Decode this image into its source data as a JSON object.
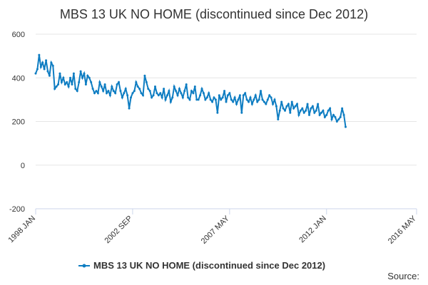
{
  "chart_data": {
    "type": "line",
    "title": "MBS 13 UK NO HOME (discontinued since Dec 2012)",
    "categories": [
      "1998 JAN",
      null,
      null,
      null,
      null,
      null,
      null,
      null,
      null,
      null,
      null,
      null,
      null,
      null,
      null,
      null,
      null,
      null,
      null,
      null,
      null,
      null,
      null,
      null,
      null,
      null,
      null,
      null,
      null,
      null,
      null,
      null,
      null,
      null,
      null,
      null,
      null,
      null,
      null,
      null,
      null,
      null,
      null,
      null,
      null,
      null,
      null,
      null,
      null,
      null,
      null,
      null,
      null,
      null,
      null,
      null,
      "2002 SEP",
      null,
      null,
      null,
      null,
      null,
      null,
      null,
      null,
      null,
      null,
      null,
      null,
      null,
      null,
      null,
      null,
      null,
      null,
      null,
      null,
      null,
      null,
      null,
      null,
      null,
      null,
      null,
      null,
      null,
      null,
      null,
      null,
      null,
      null,
      null,
      null,
      null,
      null,
      null,
      null,
      null,
      null,
      null,
      null,
      null,
      null,
      null,
      null,
      null,
      null,
      null,
      null,
      null,
      null,
      null,
      "2007 MAY",
      null,
      null,
      null,
      null,
      null,
      null,
      null,
      null,
      null,
      null,
      null,
      null,
      null,
      null,
      null,
      null,
      null,
      null,
      null,
      null,
      null,
      null,
      null,
      null,
      null,
      null,
      null,
      null,
      null,
      null,
      null,
      null,
      null,
      null,
      null,
      null,
      null,
      null,
      null,
      null,
      null,
      null,
      null,
      null,
      null,
      null,
      null,
      null,
      null,
      null,
      null,
      null,
      null,
      null,
      null,
      "2012 JAN",
      null,
      null,
      null,
      null,
      null,
      null,
      null,
      null,
      null,
      null,
      null,
      null,
      null,
      null,
      null,
      null,
      null,
      null,
      null,
      null,
      null,
      null,
      null,
      null,
      null,
      null,
      null,
      null,
      null,
      null,
      null,
      null,
      null,
      null,
      null,
      null,
      null,
      null,
      null,
      null,
      null,
      null,
      null,
      null,
      null,
      null,
      null,
      null,
      null,
      null,
      null,
      "2016 MAY"
    ],
    "series": [
      {
        "name": "MBS 13 UK NO HOME (discontinued since Dec 2012)",
        "color": "#0e7dc2",
        "values": [
          420,
          440,
          505,
          450,
          470,
          440,
          480,
          430,
          410,
          470,
          455,
          350,
          360,
          370,
          420,
          380,
          400,
          370,
          380,
          360,
          400,
          370,
          420,
          350,
          340,
          380,
          430,
          400,
          420,
          370,
          410,
          400,
          380,
          350,
          330,
          340,
          330,
          380,
          360,
          340,
          370,
          330,
          340,
          320,
          360,
          340,
          330,
          370,
          380,
          340,
          310,
          330,
          350,
          320,
          260,
          310,
          330,
          340,
          380,
          360,
          350,
          330,
          320,
          410,
          380,
          350,
          340,
          310,
          320,
          360,
          330,
          320,
          330,
          310,
          350,
          300,
          320,
          340,
          290,
          310,
          360,
          340,
          320,
          350,
          330,
          310,
          340,
          370,
          310,
          300,
          340,
          330,
          360,
          300,
          300,
          320,
          350,
          330,
          300,
          310,
          330,
          300,
          290,
          310,
          300,
          240,
          320,
          300,
          310,
          340,
          290,
          320,
          330,
          300,
          290,
          310,
          280,
          300,
          320,
          240,
          320,
          330,
          300,
          290,
          310,
          280,
          300,
          320,
          290,
          300,
          340,
          300,
          290,
          280,
          300,
          320,
          310,
          280,
          300,
          270,
          210,
          250,
          290,
          260,
          250,
          270,
          280,
          240,
          290,
          260,
          270,
          280,
          230,
          250,
          260,
          240,
          250,
          280,
          230,
          260,
          270,
          240,
          250,
          280,
          230,
          240,
          250,
          220,
          230,
          250,
          260,
          210,
          230,
          220,
          200,
          210,
          220,
          260,
          230,
          175,
          null,
          null,
          null,
          null,
          null,
          null,
          null,
          null,
          null,
          null,
          null,
          null,
          null,
          null,
          null,
          null,
          null,
          null,
          null,
          null,
          null,
          null,
          null,
          null,
          null,
          null,
          null,
          null,
          null,
          null,
          null,
          null,
          null,
          null,
          null,
          null,
          null,
          null,
          null,
          null,
          null
        ]
      }
    ],
    "ylim": [
      -200,
      600
    ],
    "yticks": [
      -200,
      0,
      200,
      400,
      600
    ],
    "grid": true,
    "source": "Source:"
  }
}
